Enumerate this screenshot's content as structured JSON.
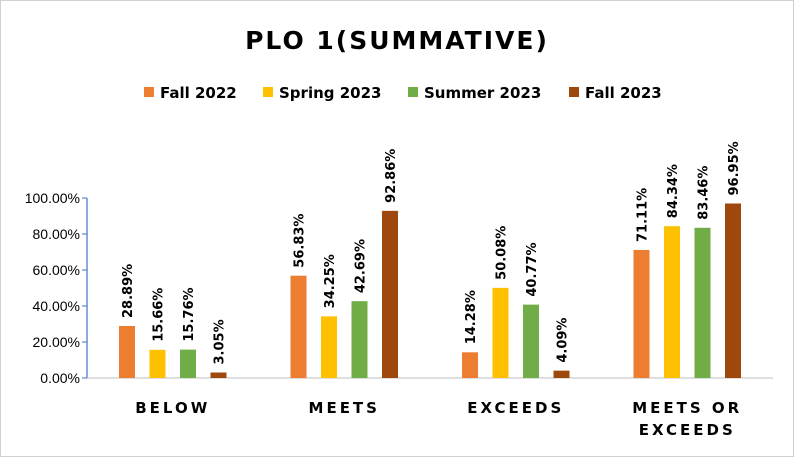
{
  "chart_data": {
    "type": "bar",
    "title": "PLO 1(SUMMATIVE)",
    "categories": [
      [
        "BELOW"
      ],
      [
        "MEETS"
      ],
      [
        "EXCEEDS"
      ],
      [
        "MEETS OR",
        "EXCEEDS"
      ]
    ],
    "series": [
      {
        "name": "Fall 2022",
        "color": "#ED7D31",
        "values": [
          28.89,
          56.83,
          14.28,
          71.11
        ],
        "labels": [
          "28.89%",
          "56.83%",
          "14.28%",
          "71.11%"
        ]
      },
      {
        "name": "Spring 2023",
        "color": "#FFC000",
        "values": [
          15.66,
          34.25,
          50.08,
          84.34
        ],
        "labels": [
          "15.66%",
          "34.25%",
          "50.08%",
          "84.34%"
        ]
      },
      {
        "name": "Summer 2023",
        "color": "#70AD47",
        "values": [
          15.76,
          42.69,
          40.77,
          83.46
        ],
        "labels": [
          "15.76%",
          "42.69%",
          "40.77%",
          "83.46%"
        ]
      },
      {
        "name": "Fall 2023",
        "color": "#9E480E",
        "values": [
          3.05,
          92.86,
          4.09,
          96.95
        ],
        "labels": [
          "3.05%",
          "92.86%",
          "4.09%",
          "96.95%"
        ]
      }
    ],
    "ylim": [
      0,
      100
    ],
    "yticks": [
      0,
      20,
      40,
      60,
      80,
      100
    ],
    "ytick_labels": [
      "0.00%",
      "20.00%",
      "40.00%",
      "60.00%",
      "80.00%",
      "100.00%"
    ],
    "legend_position": "top",
    "grid": false
  }
}
